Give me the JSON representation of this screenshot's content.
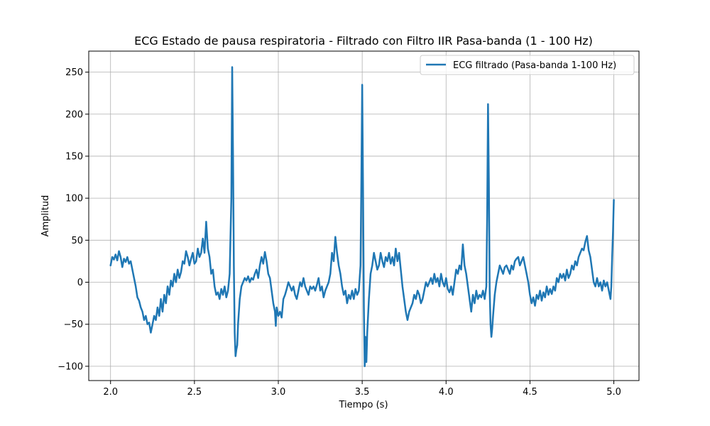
{
  "chart_data": {
    "type": "line",
    "title": "ECG Estado de pausa respiratoria - Filtrado con Filtro IIR Pasa-banda (1 - 100 Hz)",
    "xlabel": "Tiempo (s)",
    "ylabel": "Amplitud",
    "xlim": [
      1.87,
      5.15
    ],
    "ylim": [
      -117,
      275
    ],
    "xticks": [
      2.0,
      2.5,
      3.0,
      3.5,
      4.0,
      4.5,
      5.0
    ],
    "xtick_labels": [
      "2.0",
      "2.5",
      "3.0",
      "3.5",
      "4.0",
      "4.5",
      "5.0"
    ],
    "yticks": [
      -100,
      -50,
      0,
      50,
      100,
      150,
      200,
      250
    ],
    "ytick_labels": [
      "−100",
      "−50",
      "0",
      "50",
      "100",
      "150",
      "200",
      "250"
    ],
    "grid": true,
    "legend_position": "top-right",
    "series": [
      {
        "name": "ECG filtrado (Pasa-banda 1-100 Hz)",
        "color": "#1f77b4",
        "points": [
          [
            2.0,
            20
          ],
          [
            2.01,
            30
          ],
          [
            2.02,
            27
          ],
          [
            2.03,
            33
          ],
          [
            2.04,
            26
          ],
          [
            2.05,
            37
          ],
          [
            2.06,
            30
          ],
          [
            2.07,
            18
          ],
          [
            2.08,
            28
          ],
          [
            2.09,
            24
          ],
          [
            2.1,
            30
          ],
          [
            2.11,
            22
          ],
          [
            2.12,
            25
          ],
          [
            2.13,
            15
          ],
          [
            2.14,
            5
          ],
          [
            2.15,
            -5
          ],
          [
            2.16,
            -18
          ],
          [
            2.17,
            -22
          ],
          [
            2.18,
            -30
          ],
          [
            2.19,
            -35
          ],
          [
            2.2,
            -45
          ],
          [
            2.21,
            -40
          ],
          [
            2.22,
            -50
          ],
          [
            2.23,
            -48
          ],
          [
            2.24,
            -60
          ],
          [
            2.25,
            -50
          ],
          [
            2.26,
            -40
          ],
          [
            2.27,
            -45
          ],
          [
            2.28,
            -30
          ],
          [
            2.29,
            -40
          ],
          [
            2.3,
            -20
          ],
          [
            2.31,
            -35
          ],
          [
            2.32,
            -15
          ],
          [
            2.33,
            -25
          ],
          [
            2.34,
            -5
          ],
          [
            2.35,
            -15
          ],
          [
            2.36,
            2
          ],
          [
            2.37,
            -5
          ],
          [
            2.38,
            10
          ],
          [
            2.39,
            0
          ],
          [
            2.4,
            15
          ],
          [
            2.41,
            5
          ],
          [
            2.42,
            12
          ],
          [
            2.43,
            25
          ],
          [
            2.44,
            22
          ],
          [
            2.45,
            37
          ],
          [
            2.46,
            30
          ],
          [
            2.47,
            20
          ],
          [
            2.48,
            28
          ],
          [
            2.49,
            35
          ],
          [
            2.5,
            22
          ],
          [
            2.51,
            25
          ],
          [
            2.52,
            40
          ],
          [
            2.53,
            30
          ],
          [
            2.54,
            35
          ],
          [
            2.55,
            52
          ],
          [
            2.56,
            35
          ],
          [
            2.57,
            72
          ],
          [
            2.58,
            40
          ],
          [
            2.59,
            30
          ],
          [
            2.6,
            10
          ],
          [
            2.61,
            15
          ],
          [
            2.62,
            -5
          ],
          [
            2.63,
            -15
          ],
          [
            2.64,
            -12
          ],
          [
            2.65,
            -20
          ],
          [
            2.66,
            -8
          ],
          [
            2.67,
            -15
          ],
          [
            2.68,
            -5
          ],
          [
            2.69,
            -18
          ],
          [
            2.7,
            -10
          ],
          [
            2.71,
            10
          ],
          [
            2.72,
            100
          ],
          [
            2.725,
            256
          ],
          [
            2.73,
            150
          ],
          [
            2.735,
            20
          ],
          [
            2.74,
            -60
          ],
          [
            2.745,
            -88
          ],
          [
            2.75,
            -80
          ],
          [
            2.755,
            -75
          ],
          [
            2.76,
            -50
          ],
          [
            2.77,
            -20
          ],
          [
            2.78,
            -5
          ],
          [
            2.79,
            0
          ],
          [
            2.8,
            5
          ],
          [
            2.81,
            2
          ],
          [
            2.82,
            7
          ],
          [
            2.83,
            0
          ],
          [
            2.84,
            5
          ],
          [
            2.85,
            3
          ],
          [
            2.86,
            10
          ],
          [
            2.87,
            15
          ],
          [
            2.88,
            5
          ],
          [
            2.89,
            20
          ],
          [
            2.9,
            30
          ],
          [
            2.91,
            22
          ],
          [
            2.92,
            36
          ],
          [
            2.93,
            25
          ],
          [
            2.94,
            10
          ],
          [
            2.95,
            5
          ],
          [
            2.96,
            -10
          ],
          [
            2.97,
            -25
          ],
          [
            2.98,
            -35
          ],
          [
            2.985,
            -52
          ],
          [
            2.99,
            -30
          ],
          [
            3.0,
            -40
          ],
          [
            3.01,
            -35
          ],
          [
            3.02,
            -42
          ],
          [
            3.03,
            -20
          ],
          [
            3.04,
            -15
          ],
          [
            3.05,
            -8
          ],
          [
            3.06,
            0
          ],
          [
            3.07,
            -5
          ],
          [
            3.08,
            -10
          ],
          [
            3.09,
            -5
          ],
          [
            3.1,
            -15
          ],
          [
            3.11,
            -20
          ],
          [
            3.12,
            -10
          ],
          [
            3.13,
            0
          ],
          [
            3.14,
            -5
          ],
          [
            3.15,
            5
          ],
          [
            3.16,
            -5
          ],
          [
            3.17,
            -10
          ],
          [
            3.18,
            -15
          ],
          [
            3.19,
            -5
          ],
          [
            3.2,
            -8
          ],
          [
            3.21,
            -5
          ],
          [
            3.22,
            -10
          ],
          [
            3.23,
            -3
          ],
          [
            3.24,
            5
          ],
          [
            3.25,
            -10
          ],
          [
            3.26,
            -5
          ],
          [
            3.27,
            -18
          ],
          [
            3.28,
            -10
          ],
          [
            3.29,
            -5
          ],
          [
            3.3,
            0
          ],
          [
            3.31,
            10
          ],
          [
            3.32,
            35
          ],
          [
            3.33,
            25
          ],
          [
            3.34,
            54
          ],
          [
            3.35,
            35
          ],
          [
            3.36,
            20
          ],
          [
            3.37,
            10
          ],
          [
            3.38,
            -5
          ],
          [
            3.39,
            -15
          ],
          [
            3.4,
            -10
          ],
          [
            3.41,
            -25
          ],
          [
            3.42,
            -15
          ],
          [
            3.43,
            -20
          ],
          [
            3.44,
            -10
          ],
          [
            3.45,
            -20
          ],
          [
            3.46,
            -8
          ],
          [
            3.47,
            -15
          ],
          [
            3.48,
            -10
          ],
          [
            3.49,
            20
          ],
          [
            3.495,
            120
          ],
          [
            3.5,
            235
          ],
          [
            3.505,
            110
          ],
          [
            3.51,
            -30
          ],
          [
            3.515,
            -100
          ],
          [
            3.52,
            -65
          ],
          [
            3.525,
            -95
          ],
          [
            3.53,
            -60
          ],
          [
            3.54,
            -20
          ],
          [
            3.55,
            10
          ],
          [
            3.56,
            20
          ],
          [
            3.57,
            35
          ],
          [
            3.58,
            25
          ],
          [
            3.59,
            15
          ],
          [
            3.6,
            20
          ],
          [
            3.61,
            35
          ],
          [
            3.62,
            25
          ],
          [
            3.63,
            18
          ],
          [
            3.64,
            30
          ],
          [
            3.65,
            25
          ],
          [
            3.66,
            35
          ],
          [
            3.67,
            22
          ],
          [
            3.68,
            30
          ],
          [
            3.69,
            20
          ],
          [
            3.7,
            40
          ],
          [
            3.71,
            25
          ],
          [
            3.72,
            35
          ],
          [
            3.73,
            15
          ],
          [
            3.74,
            -5
          ],
          [
            3.75,
            -20
          ],
          [
            3.76,
            -35
          ],
          [
            3.77,
            -45
          ],
          [
            3.78,
            -35
          ],
          [
            3.79,
            -30
          ],
          [
            3.8,
            -25
          ],
          [
            3.81,
            -15
          ],
          [
            3.82,
            -20
          ],
          [
            3.83,
            -10
          ],
          [
            3.84,
            -15
          ],
          [
            3.85,
            -25
          ],
          [
            3.86,
            -20
          ],
          [
            3.87,
            -10
          ],
          [
            3.88,
            0
          ],
          [
            3.89,
            -5
          ],
          [
            3.9,
            0
          ],
          [
            3.91,
            5
          ],
          [
            3.92,
            -2
          ],
          [
            3.93,
            10
          ],
          [
            3.94,
            0
          ],
          [
            3.95,
            5
          ],
          [
            3.96,
            -5
          ],
          [
            3.97,
            10
          ],
          [
            3.98,
            0
          ],
          [
            3.99,
            -5
          ],
          [
            4.0,
            5
          ],
          [
            4.01,
            -8
          ],
          [
            4.02,
            -12
          ],
          [
            4.03,
            -5
          ],
          [
            4.04,
            -15
          ],
          [
            4.05,
            0
          ],
          [
            4.06,
            15
          ],
          [
            4.07,
            10
          ],
          [
            4.08,
            20
          ],
          [
            4.09,
            15
          ],
          [
            4.1,
            45
          ],
          [
            4.11,
            20
          ],
          [
            4.12,
            10
          ],
          [
            4.13,
            -5
          ],
          [
            4.14,
            -20
          ],
          [
            4.15,
            -35
          ],
          [
            4.16,
            -15
          ],
          [
            4.17,
            -25
          ],
          [
            4.18,
            -10
          ],
          [
            4.19,
            -20
          ],
          [
            4.2,
            -15
          ],
          [
            4.21,
            -18
          ],
          [
            4.22,
            -10
          ],
          [
            4.23,
            -20
          ],
          [
            4.24,
            -5
          ],
          [
            4.245,
            80
          ],
          [
            4.25,
            212
          ],
          [
            4.255,
            120
          ],
          [
            4.26,
            -10
          ],
          [
            4.265,
            -50
          ],
          [
            4.27,
            -65
          ],
          [
            4.275,
            -55
          ],
          [
            4.28,
            -40
          ],
          [
            4.29,
            -15
          ],
          [
            4.3,
            0
          ],
          [
            4.31,
            10
          ],
          [
            4.32,
            20
          ],
          [
            4.33,
            15
          ],
          [
            4.34,
            10
          ],
          [
            4.35,
            18
          ],
          [
            4.36,
            20
          ],
          [
            4.37,
            15
          ],
          [
            4.38,
            10
          ],
          [
            4.39,
            20
          ],
          [
            4.4,
            15
          ],
          [
            4.41,
            25
          ],
          [
            4.42,
            28
          ],
          [
            4.43,
            30
          ],
          [
            4.44,
            20
          ],
          [
            4.45,
            25
          ],
          [
            4.46,
            30
          ],
          [
            4.47,
            20
          ],
          [
            4.48,
            10
          ],
          [
            4.49,
            0
          ],
          [
            4.5,
            -15
          ],
          [
            4.51,
            -25
          ],
          [
            4.52,
            -18
          ],
          [
            4.53,
            -28
          ],
          [
            4.54,
            -15
          ],
          [
            4.55,
            -20
          ],
          [
            4.56,
            -10
          ],
          [
            4.57,
            -22
          ],
          [
            4.58,
            -12
          ],
          [
            4.59,
            -18
          ],
          [
            4.6,
            -5
          ],
          [
            4.61,
            -15
          ],
          [
            4.62,
            -8
          ],
          [
            4.63,
            -14
          ],
          [
            4.64,
            -5
          ],
          [
            4.65,
            -10
          ],
          [
            4.66,
            5
          ],
          [
            4.67,
            0
          ],
          [
            4.68,
            10
          ],
          [
            4.69,
            5
          ],
          [
            4.7,
            10
          ],
          [
            4.71,
            2
          ],
          [
            4.72,
            15
          ],
          [
            4.73,
            5
          ],
          [
            4.74,
            10
          ],
          [
            4.75,
            20
          ],
          [
            4.76,
            15
          ],
          [
            4.77,
            25
          ],
          [
            4.78,
            20
          ],
          [
            4.79,
            30
          ],
          [
            4.8,
            35
          ],
          [
            4.81,
            40
          ],
          [
            4.82,
            38
          ],
          [
            4.83,
            48
          ],
          [
            4.84,
            55
          ],
          [
            4.85,
            38
          ],
          [
            4.86,
            30
          ],
          [
            4.87,
            15
          ],
          [
            4.88,
            0
          ],
          [
            4.89,
            -5
          ],
          [
            4.9,
            5
          ],
          [
            4.91,
            -5
          ],
          [
            4.92,
            0
          ],
          [
            4.93,
            -10
          ],
          [
            4.94,
            2
          ],
          [
            4.95,
            -5
          ],
          [
            4.96,
            0
          ],
          [
            4.97,
            -10
          ],
          [
            4.98,
            -20
          ],
          [
            4.985,
            -5
          ],
          [
            4.99,
            30
          ],
          [
            4.995,
            60
          ],
          [
            5.0,
            98
          ]
        ]
      }
    ]
  }
}
